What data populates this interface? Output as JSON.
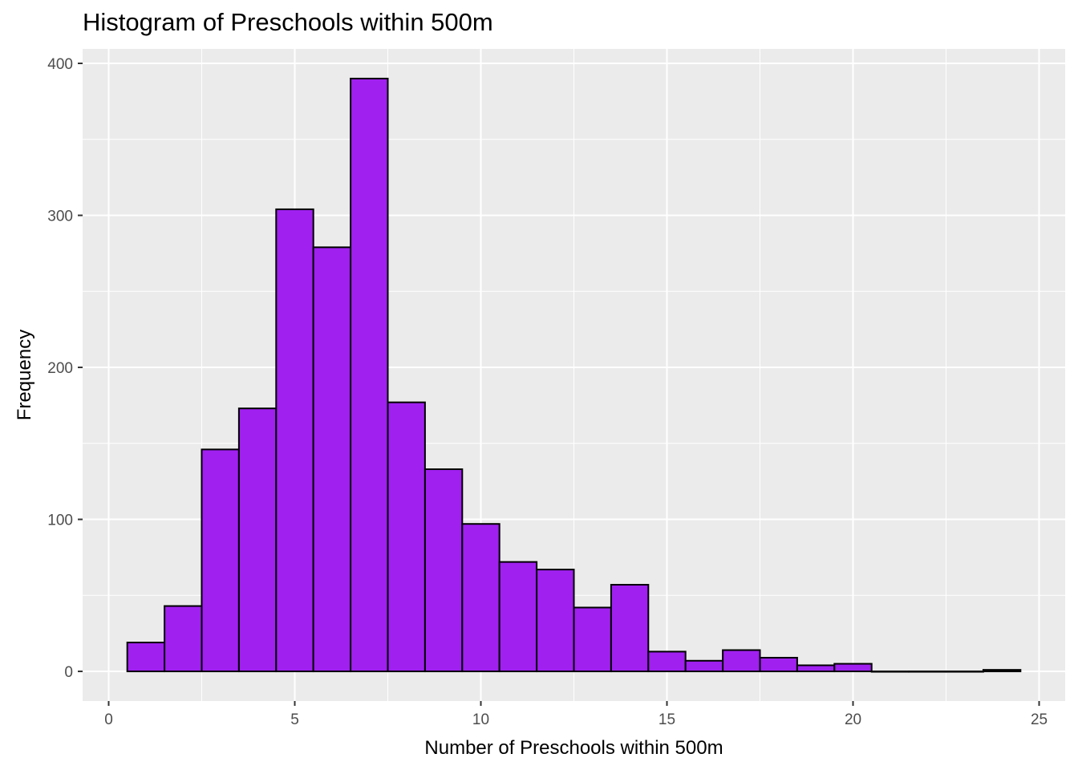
{
  "chart_data": {
    "type": "bar",
    "title": "Histogram of Preschools within 500m",
    "xlabel": "Number of Preschools within 500m",
    "ylabel": "Frequency",
    "bin_width": 1,
    "x": [
      1,
      2,
      3,
      4,
      5,
      6,
      7,
      8,
      9,
      10,
      11,
      12,
      13,
      14,
      15,
      16,
      17,
      18,
      19,
      20,
      21,
      22,
      23,
      24
    ],
    "values": [
      19,
      43,
      146,
      173,
      304,
      279,
      390,
      177,
      133,
      97,
      72,
      67,
      42,
      57,
      13,
      7,
      14,
      9,
      4,
      5,
      0,
      0,
      0,
      1
    ],
    "xlim": [
      -0.7,
      25.7
    ],
    "ylim": [
      -19.5,
      409.5
    ],
    "x_ticks": [
      0,
      5,
      10,
      15,
      20,
      25
    ],
    "y_ticks": [
      0,
      100,
      200,
      300,
      400
    ],
    "grid": true,
    "colors": {
      "fill": "#a020f0",
      "outline": "#000000",
      "panel": "#ebebeb",
      "grid": "#ffffff"
    }
  }
}
